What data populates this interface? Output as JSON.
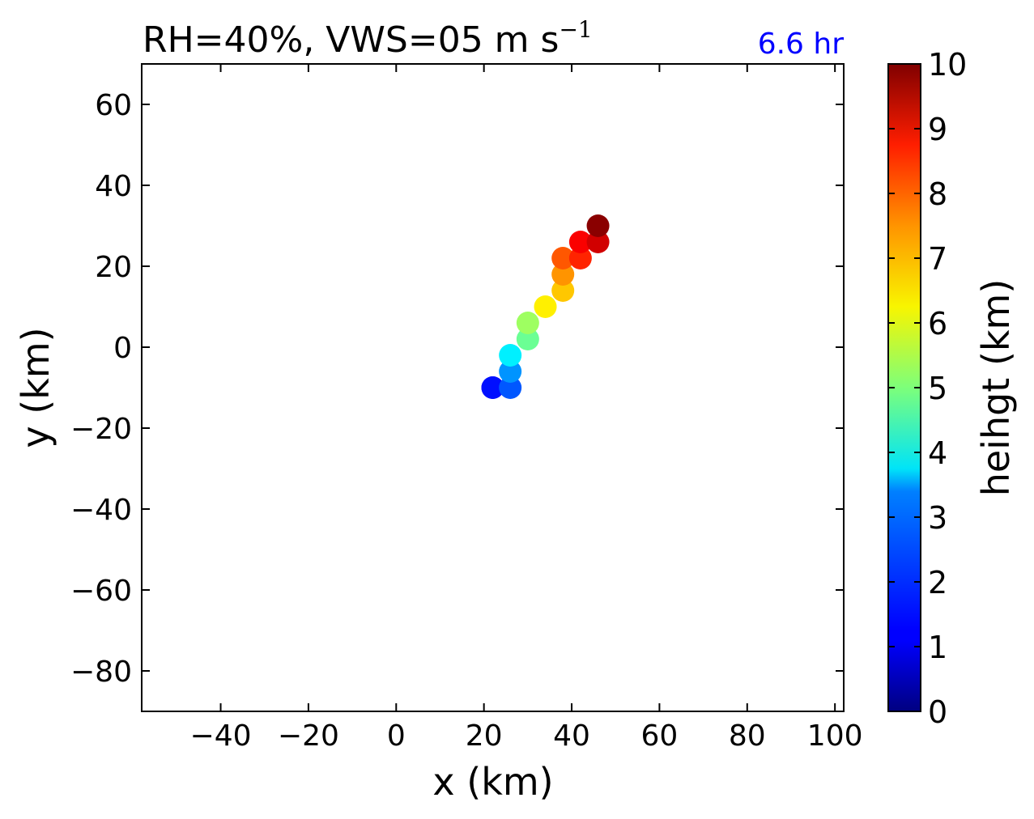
{
  "chart_data": {
    "type": "scatter",
    "title_main": "RH=40%, VWS=05 m s",
    "title_sup": "−1",
    "time_label": "6.6 hr",
    "time_label_color": "#0000ff",
    "xlabel": "x (km)",
    "ylabel": "y (km)",
    "xlim": [
      -58,
      102
    ],
    "ylim": [
      -90,
      70
    ],
    "xticks": [
      -40,
      -20,
      0,
      20,
      40,
      60,
      80,
      100
    ],
    "xtick_labels": [
      "−40",
      "−20",
      "0",
      "20",
      "40",
      "60",
      "80",
      "100"
    ],
    "yticks": [
      60,
      40,
      20,
      0,
      -20,
      -40,
      -60,
      -80
    ],
    "ytick_labels": [
      "60",
      "40",
      "20",
      "0",
      "−20",
      "−40",
      "−60",
      "−80"
    ],
    "colorbar": {
      "label": "heihgt (km)",
      "range": [
        0,
        10
      ],
      "colormap": "jet",
      "ticks": [
        0,
        1,
        2,
        3,
        4,
        5,
        6,
        7,
        8,
        9,
        10
      ],
      "tick_labels": [
        "0",
        "1",
        "2",
        "3",
        "4",
        "5",
        "6",
        "7",
        "8",
        "9",
        "10"
      ]
    },
    "series": [
      {
        "points": [
          {
            "x": 22,
            "y": -10,
            "height": 1.1
          },
          {
            "x": 22,
            "y": -10,
            "height": 1.4
          },
          {
            "x": 26,
            "y": -10,
            "height": 2.1
          },
          {
            "x": 26,
            "y": -6,
            "height": 2.7
          },
          {
            "x": 26,
            "y": -2,
            "height": 3.6
          },
          {
            "x": 30,
            "y": 2,
            "height": 4.8
          },
          {
            "x": 30,
            "y": 6,
            "height": 5.3
          },
          {
            "x": 34,
            "y": 10,
            "height": 6.4
          },
          {
            "x": 38,
            "y": 14,
            "height": 6.8
          },
          {
            "x": 38,
            "y": 18,
            "height": 7.3
          },
          {
            "x": 38,
            "y": 22,
            "height": 7.9
          },
          {
            "x": 42,
            "y": 22,
            "height": 8.4
          },
          {
            "x": 42,
            "y": 26,
            "height": 8.8
          },
          {
            "x": 46,
            "y": 26,
            "height": 9.2
          },
          {
            "x": 46,
            "y": 30,
            "height": 9.9
          }
        ]
      }
    ]
  }
}
